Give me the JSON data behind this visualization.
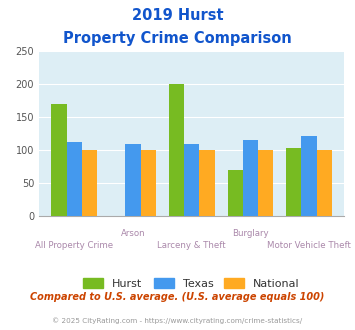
{
  "title_line1": "2019 Hurst",
  "title_line2": "Property Crime Comparison",
  "categories": [
    "All Property Crime",
    "Arson",
    "Larceny & Theft",
    "Burglary",
    "Motor Vehicle Theft"
  ],
  "hurst": [
    170,
    0,
    200,
    70,
    103
  ],
  "texas": [
    113,
    110,
    110,
    115,
    122
  ],
  "national": [
    100,
    100,
    100,
    100,
    100
  ],
  "hurst_color": "#77bb22",
  "texas_color": "#4499ee",
  "national_color": "#ffaa22",
  "bg_color": "#ddeef5",
  "ylim": [
    0,
    250
  ],
  "yticks": [
    0,
    50,
    100,
    150,
    200,
    250
  ],
  "legend_labels": [
    "Hurst",
    "Texas",
    "National"
  ],
  "note": "Compared to U.S. average. (U.S. average equals 100)",
  "footer": "© 2025 CityRating.com - https://www.cityrating.com/crime-statistics/",
  "title_color": "#1155cc",
  "xlabel_color": "#aa88aa",
  "note_color": "#cc4400",
  "footer_color": "#999999"
}
